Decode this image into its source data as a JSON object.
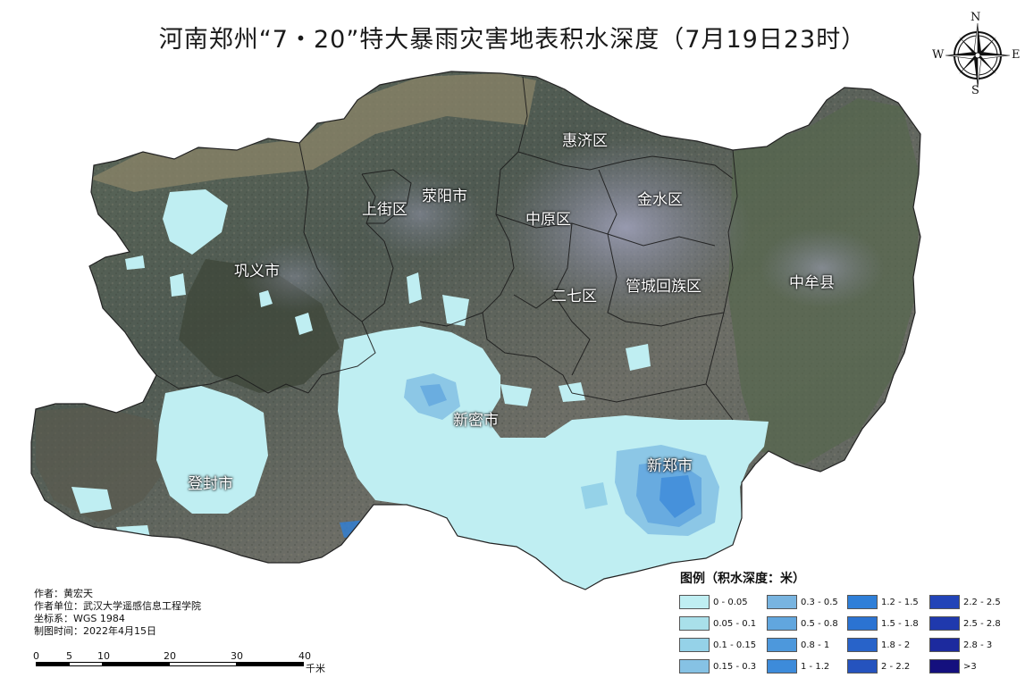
{
  "title": "河南郑州“7・20”特大暴雨灾害地表积水深度（7月19日23时）",
  "compass": {
    "n": "N",
    "e": "E",
    "s": "S",
    "w": "W",
    "icon": "compass-rose-icon"
  },
  "districts": [
    {
      "id": "huiji",
      "label": "惠济区"
    },
    {
      "id": "jinshui",
      "label": "金水区"
    },
    {
      "id": "zhongyuan",
      "label": "中原区"
    },
    {
      "id": "shangjie",
      "label": "上街区"
    },
    {
      "id": "xingyang",
      "label": "荥阳市"
    },
    {
      "id": "gongyi",
      "label": "巩义市"
    },
    {
      "id": "erqi",
      "label": "二七区"
    },
    {
      "id": "guancheng",
      "label": "管城回族区"
    },
    {
      "id": "zhongmou",
      "label": "中牟县"
    },
    {
      "id": "xinmi",
      "label": "新密市"
    },
    {
      "id": "xinzheng",
      "label": "新郑市"
    },
    {
      "id": "dengfeng",
      "label": "登封市"
    }
  ],
  "credits": {
    "author": "作者：黄宏天",
    "affiliation": "作者单位：武汉大学遥感信息工程学院",
    "crs": "坐标系：WGS 1984",
    "date": "制图时间：2022年4月15日"
  },
  "scalebar": {
    "ticks": [
      "0",
      "5",
      "10",
      "20",
      "30",
      "40"
    ],
    "unit": "千米"
  },
  "legend": {
    "title": "图例（积水深度：米）",
    "items": [
      {
        "label": "0 - 0.05",
        "color": "#bfeef2"
      },
      {
        "label": "0.3 - 0.5",
        "color": "#78b4e0"
      },
      {
        "label": "1.2 - 1.5",
        "color": "#2f7fd8"
      },
      {
        "label": "2.2 - 2.5",
        "color": "#2244b8"
      },
      {
        "label": "0.05 - 0.1",
        "color": "#a9e0ea"
      },
      {
        "label": "0.5 - 0.8",
        "color": "#61a6de"
      },
      {
        "label": "1.5 - 1.8",
        "color": "#2b73d2"
      },
      {
        "label": "2.5 - 2.8",
        "color": "#1f39ad"
      },
      {
        "label": "0.1 - 0.15",
        "color": "#95d2e8"
      },
      {
        "label": "0.8 - 1",
        "color": "#4d98dc"
      },
      {
        "label": "1.8 - 2",
        "color": "#2863c9"
      },
      {
        "label": "2.8 - 3",
        "color": "#1c2a9e"
      },
      {
        "label": "0.15 - 0.3",
        "color": "#86c2e4"
      },
      {
        "label": "1 - 1.2",
        "color": "#3d8bda"
      },
      {
        "label": "2 - 2.2",
        "color": "#2553be"
      },
      {
        "label": ">3",
        "color": "#14107e"
      }
    ]
  }
}
